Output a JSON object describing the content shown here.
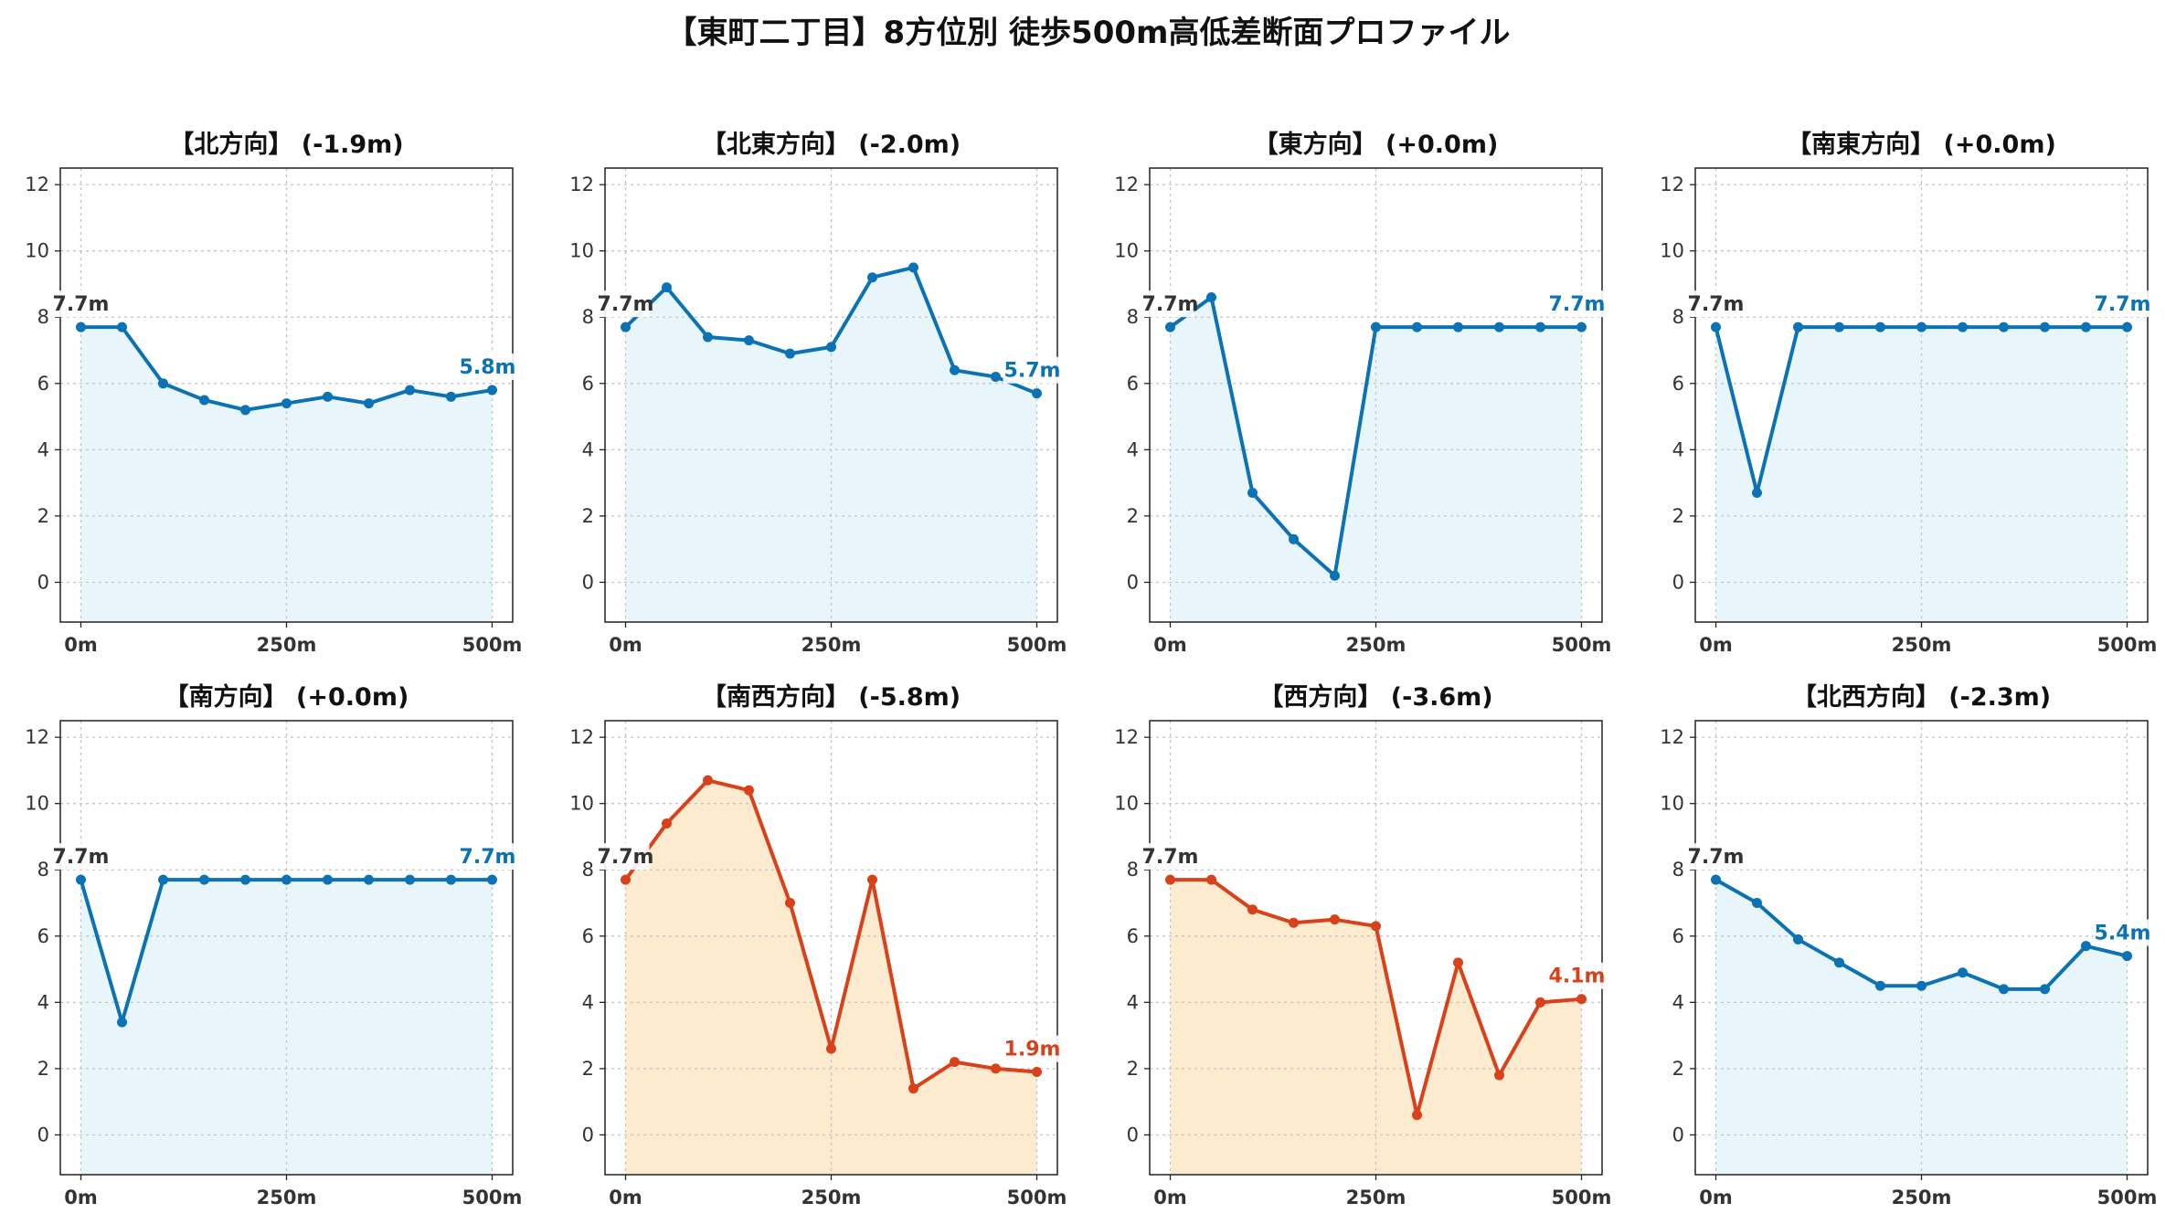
{
  "page": {
    "title": "【東町二丁目】8方位別 徒歩500m高低差断面プロファイル"
  },
  "colors": {
    "up": "#0b72b5",
    "up_fill": "#e8f6fc",
    "down": "#d9411a",
    "down_fill": "#fdebd0",
    "start_label": "#333333",
    "grid": "#c4c4c4"
  },
  "chart_data": [
    {
      "type": "area",
      "title": "【北方向】 (-1.9m)",
      "trend": "up",
      "x": [
        0,
        50,
        100,
        150,
        200,
        250,
        300,
        350,
        400,
        450,
        500
      ],
      "y": [
        7.7,
        7.7,
        6.0,
        5.5,
        5.2,
        5.4,
        5.6,
        5.4,
        5.8,
        5.6,
        5.8
      ],
      "start_label": "7.7m",
      "end_label": "5.8m"
    },
    {
      "type": "area",
      "title": "【北東方向】 (-2.0m)",
      "trend": "up",
      "x": [
        0,
        50,
        100,
        150,
        200,
        250,
        300,
        350,
        400,
        450,
        500
      ],
      "y": [
        7.7,
        8.9,
        7.4,
        7.3,
        6.9,
        7.1,
        9.2,
        9.5,
        6.4,
        6.2,
        5.7
      ],
      "start_label": "7.7m",
      "end_label": "5.7m"
    },
    {
      "type": "area",
      "title": "【東方向】 (+0.0m)",
      "trend": "up",
      "x": [
        0,
        50,
        100,
        150,
        200,
        250,
        300,
        350,
        400,
        450,
        500
      ],
      "y": [
        7.7,
        8.6,
        2.7,
        1.3,
        0.2,
        7.7,
        7.7,
        7.7,
        7.7,
        7.7,
        7.7
      ],
      "start_label": "7.7m",
      "end_label": "7.7m"
    },
    {
      "type": "area",
      "title": "【南東方向】 (+0.0m)",
      "trend": "up",
      "x": [
        0,
        50,
        100,
        150,
        200,
        250,
        300,
        350,
        400,
        450,
        500
      ],
      "y": [
        7.7,
        2.7,
        7.7,
        7.7,
        7.7,
        7.7,
        7.7,
        7.7,
        7.7,
        7.7,
        7.7
      ],
      "start_label": "7.7m",
      "end_label": "7.7m"
    },
    {
      "type": "area",
      "title": "【南方向】 (+0.0m)",
      "trend": "up",
      "x": [
        0,
        50,
        100,
        150,
        200,
        250,
        300,
        350,
        400,
        450,
        500
      ],
      "y": [
        7.7,
        3.4,
        7.7,
        7.7,
        7.7,
        7.7,
        7.7,
        7.7,
        7.7,
        7.7,
        7.7
      ],
      "start_label": "7.7m",
      "end_label": "7.7m"
    },
    {
      "type": "area",
      "title": "【南西方向】 (-5.8m)",
      "trend": "down",
      "x": [
        0,
        50,
        100,
        150,
        200,
        250,
        300,
        350,
        400,
        450,
        500
      ],
      "y": [
        7.7,
        9.4,
        10.7,
        10.4,
        7.0,
        2.6,
        7.7,
        1.4,
        2.2,
        2.0,
        1.9
      ],
      "start_label": "7.7m",
      "end_label": "1.9m"
    },
    {
      "type": "area",
      "title": "【西方向】 (-3.6m)",
      "trend": "down",
      "x": [
        0,
        50,
        100,
        150,
        200,
        250,
        300,
        350,
        400,
        450,
        500
      ],
      "y": [
        7.7,
        7.7,
        6.8,
        6.4,
        6.5,
        6.3,
        0.6,
        5.2,
        1.8,
        4.0,
        4.1
      ],
      "start_label": "7.7m",
      "end_label": "4.1m"
    },
    {
      "type": "area",
      "title": "【北西方向】 (-2.3m)",
      "trend": "up",
      "x": [
        0,
        50,
        100,
        150,
        200,
        250,
        300,
        350,
        400,
        450,
        500
      ],
      "y": [
        7.7,
        7.0,
        5.9,
        5.2,
        4.5,
        4.5,
        4.9,
        4.4,
        4.4,
        5.7,
        5.4
      ],
      "start_label": "7.7m",
      "end_label": "5.4m"
    }
  ],
  "axes": {
    "ylim": [
      -1.2,
      12.5
    ],
    "yticks": [
      0,
      2,
      4,
      6,
      8,
      10,
      12
    ],
    "xlim": [
      -25,
      525
    ],
    "xticks": [
      0,
      250,
      500
    ],
    "xtick_labels": [
      "0m",
      "250m",
      "500m"
    ],
    "grid": true
  }
}
